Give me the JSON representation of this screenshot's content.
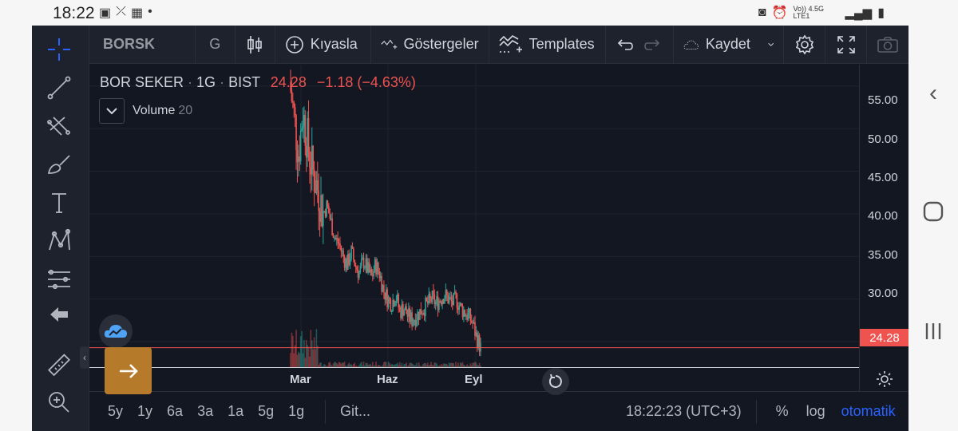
{
  "statusbar": {
    "time": "18:22",
    "net_label": "Vo)) 4.5G LTE1"
  },
  "toolbar": {
    "symbol": "BORSK",
    "interval": "G",
    "compare": "Kıyasla",
    "indicators": "Göstergeler",
    "templates": "Templates",
    "save": "Kaydet"
  },
  "legend": {
    "name": "BOR SEKER",
    "interval": "1G",
    "exchange": "BIST",
    "last": "24.28",
    "change": "−1.18 (−4.63%)",
    "volume_label": "Volume",
    "volume_value": "20"
  },
  "price_axis": {
    "ticks": [
      "55.00",
      "50.00",
      "45.00",
      "40.00",
      "35.00",
      "30.00"
    ],
    "last_price": "24.28"
  },
  "time_axis": {
    "ticks": [
      "Mar",
      "Haz",
      "Eyl"
    ]
  },
  "bottom": {
    "ranges": [
      "5y",
      "1y",
      "6a",
      "3a",
      "1a",
      "5g",
      "1g"
    ],
    "goto": "Git...",
    "clock": "18:22:23 (UTC+3)",
    "percent": "%",
    "log": "log",
    "auto": "otomatik"
  },
  "colors": {
    "up": "#26a69a",
    "down": "#ef5350",
    "accent": "#2962ff",
    "bg": "#131722",
    "fab": "#b67a2b"
  },
  "chart_data": {
    "type": "candlestick",
    "title": "BOR SEKER · 1G · BIST",
    "ylim": [
      22,
      57.5
    ],
    "x_labels": [
      "Mar",
      "Haz",
      "Eyl"
    ],
    "close_series": [
      54.5,
      51,
      47,
      52,
      49,
      46,
      44,
      42.5,
      40,
      41,
      39,
      37,
      36.5,
      35,
      34,
      35.5,
      34,
      33,
      34.5,
      33.5,
      32.5,
      34,
      33,
      31,
      30,
      29.5,
      30.5,
      28.5,
      29,
      28,
      27.5,
      28,
      28.5,
      29,
      29.5,
      30,
      29.5,
      30,
      30.5,
      30,
      29.5,
      30,
      29,
      28.5,
      28,
      27.2,
      25.5,
      24.28
    ],
    "last": 24.28,
    "volume_label": "Volume 20"
  }
}
